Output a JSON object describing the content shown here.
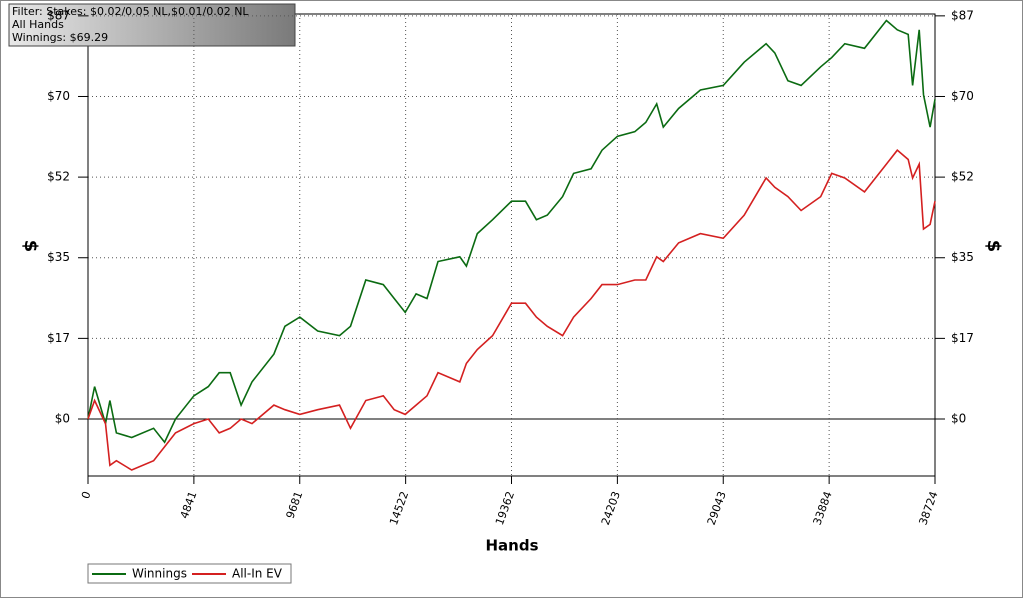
{
  "chart_data": {
    "type": "line",
    "annotations": [
      "Filter: Stakes: $0.02/0.05 NL,$0.01/0.02 NL",
      "All Hands",
      "Winnings: $69.29"
    ],
    "xlabel": "Hands",
    "ylabel": "$",
    "y2label": "$",
    "xlim": [
      0,
      38724
    ],
    "xticks": [
      0,
      4841,
      9681,
      14522,
      19362,
      24203,
      29043,
      33884,
      38724
    ],
    "ylim": [
      -12.3,
      87.4
    ],
    "yticks": [
      {
        "value": 0,
        "label": "$0"
      },
      {
        "value": 17.4,
        "label": "$17"
      },
      {
        "value": 34.8,
        "label": "$35"
      },
      {
        "value": 52.2,
        "label": "$52"
      },
      {
        "value": 69.6,
        "label": "$70"
      },
      {
        "value": 87,
        "label": "$87"
      }
    ],
    "grid": true,
    "legend": "bottom-left",
    "x": [
      0,
      300,
      800,
      1000,
      1300,
      2000,
      3000,
      3500,
      4000,
      4841,
      5500,
      6000,
      6500,
      7000,
      7500,
      8500,
      9000,
      9681,
      10500,
      11500,
      12000,
      12700,
      13500,
      14000,
      14500,
      15000,
      15500,
      16000,
      17000,
      17300,
      17800,
      18500,
      19362,
      20000,
      20500,
      21000,
      21700,
      22200,
      23000,
      23500,
      24203,
      25000,
      25500,
      26000,
      26300,
      27000,
      28000,
      29043,
      30000,
      31000,
      31400,
      32000,
      32600,
      33500,
      34000,
      34600,
      35500,
      36500,
      37000,
      37500,
      37700,
      38000,
      38200,
      38500,
      38724
    ],
    "series": [
      {
        "name": "Winnings",
        "color": "#0b6b12",
        "values": [
          0,
          7,
          -1,
          4,
          -3,
          -4,
          -2,
          -5,
          0,
          5,
          7,
          10,
          10,
          3,
          8,
          14,
          20,
          22,
          19,
          18,
          20,
          30,
          29,
          26,
          23,
          27,
          26,
          34,
          35,
          33,
          40,
          43,
          47,
          47,
          43,
          44,
          48,
          53,
          54,
          58,
          61,
          62,
          64,
          68,
          63,
          67,
          71,
          72,
          77,
          81,
          79,
          73,
          72,
          76,
          78,
          81,
          80,
          86,
          84,
          83,
          72,
          84,
          70,
          63,
          69
        ]
      },
      {
        "name": "All-In EV",
        "color": "#d42020",
        "values": [
          0,
          4,
          -1,
          -10,
          -9,
          -11,
          -9,
          -6,
          -3,
          -1,
          0,
          -3,
          -2,
          0,
          -1,
          3,
          2,
          1,
          2,
          3,
          -2,
          4,
          5,
          2,
          1,
          3,
          5,
          10,
          8,
          12,
          15,
          18,
          25,
          25,
          22,
          20,
          18,
          22,
          26,
          29,
          29,
          30,
          30,
          35,
          34,
          38,
          40,
          39,
          44,
          52,
          50,
          48,
          45,
          48,
          53,
          52,
          49,
          55,
          58,
          56,
          52,
          55,
          41,
          42,
          47
        ]
      }
    ]
  }
}
